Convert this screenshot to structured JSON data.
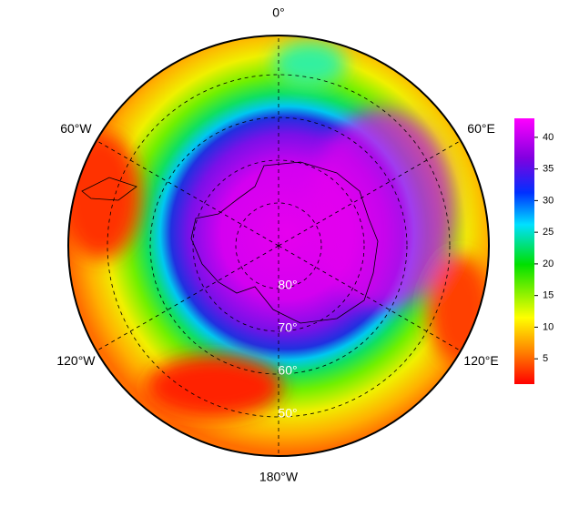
{
  "map": {
    "meridians": [
      {
        "value": 0,
        "label": "0°"
      },
      {
        "value": 60,
        "label": "60°E"
      },
      {
        "value": 120,
        "label": "120°E"
      },
      {
        "value": 180,
        "label": "180°W"
      },
      {
        "value": -120,
        "label": "120°W"
      },
      {
        "value": -60,
        "label": "60°W"
      }
    ],
    "parallels": [
      {
        "value": 80,
        "label": "80°"
      },
      {
        "value": 70,
        "label": "70°"
      },
      {
        "value": 60,
        "label": "60°"
      },
      {
        "value": 50,
        "label": "50°"
      }
    ]
  },
  "colorbar": {
    "range": [
      1,
      43
    ],
    "ticks": [
      5,
      10,
      15,
      20,
      25,
      30,
      35,
      40
    ]
  }
}
